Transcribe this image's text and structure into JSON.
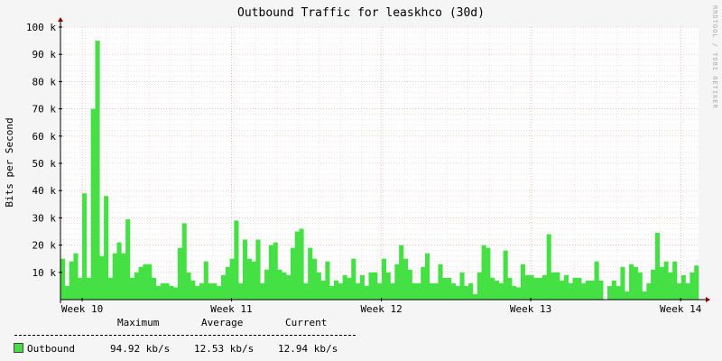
{
  "colors": {
    "area": "#44e044",
    "area_stroke": "#00cc00",
    "grid_major": "#e8a0a0",
    "grid_minor": "#e0c8c8",
    "axis": "#8b0000",
    "plot_bg": "#ffffff",
    "page_bg": "#f5f5f5"
  },
  "watermark": "RRDTOOL / TOBI OETIKER",
  "chart_data": {
    "type": "area",
    "title": "Outbound Traffic for leaskhco (30d)",
    "ylabel": "Bits per Second",
    "xlabel": "",
    "ylim": [
      0,
      100000
    ],
    "y_ticks": [
      10000,
      20000,
      30000,
      40000,
      50000,
      60000,
      70000,
      80000,
      90000,
      100000
    ],
    "y_tick_labels": [
      "10 k",
      "20 k",
      "30 k",
      "40 k",
      "50 k",
      "60 k",
      "70 k",
      "80 k",
      "90 k",
      "100 k"
    ],
    "x_ticks": [
      {
        "label": "Week 10",
        "pos": 0.034
      },
      {
        "label": "Week 11",
        "pos": 0.268
      },
      {
        "label": "Week 12",
        "pos": 0.503
      },
      {
        "label": "Week 13",
        "pos": 0.737
      },
      {
        "label": "Week 14",
        "pos": 0.972
      }
    ],
    "grid": true,
    "series": [
      {
        "name": "Outbound",
        "values": [
          15000,
          5000,
          14000,
          17000,
          8000,
          39000,
          8000,
          70000,
          95000,
          16000,
          38000,
          8000,
          17000,
          21000,
          17000,
          29500,
          8000,
          10000,
          12000,
          13000,
          13000,
          8000,
          5000,
          6000,
          6000,
          5000,
          4500,
          19000,
          28000,
          10000,
          7000,
          5000,
          6000,
          14000,
          6000,
          6000,
          5000,
          9000,
          12000,
          15000,
          29000,
          6000,
          22000,
          15000,
          14000,
          22000,
          6000,
          11000,
          20000,
          21000,
          11000,
          10000,
          9000,
          19000,
          25000,
          26000,
          6000,
          19000,
          15000,
          10000,
          7000,
          14000,
          5000,
          7000,
          6000,
          9000,
          8000,
          15000,
          6000,
          9000,
          5000,
          10000,
          10000,
          6000,
          15000,
          10000,
          6000,
          13000,
          20000,
          15000,
          11000,
          6000,
          6000,
          12000,
          17000,
          6000,
          6000,
          13000,
          8000,
          8000,
          6000,
          5000,
          10000,
          5000,
          6000,
          2000,
          10000,
          20000,
          19000,
          8000,
          7000,
          6000,
          18000,
          8000,
          5000,
          4500,
          13000,
          9000,
          9000,
          8000,
          8000,
          9000,
          24000,
          10000,
          10000,
          7000,
          9000,
          6000,
          8000,
          8000,
          6000,
          7000,
          7000,
          14000,
          7000,
          0,
          5000,
          7000,
          5000,
          12000,
          3000,
          13000,
          12000,
          10000,
          3000,
          6000,
          11000,
          24500,
          12000,
          14000,
          10000,
          14000,
          6000,
          9000,
          6000,
          10000,
          12500
        ]
      }
    ],
    "legend": {
      "headers": [
        "Maximum",
        "Average",
        "Current"
      ],
      "entries": [
        {
          "name": "Outbound",
          "maximum": "94.92 kb/s",
          "average": "12.53 kb/s",
          "current": "12.94 kb/s"
        }
      ]
    }
  }
}
